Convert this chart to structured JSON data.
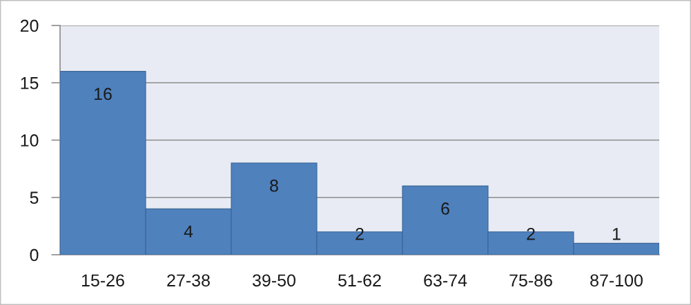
{
  "chart_data": {
    "type": "bar",
    "categories": [
      "15-26",
      "27-38",
      "39-50",
      "51-62",
      "63-74",
      "75-86",
      "87-100"
    ],
    "values": [
      16,
      4,
      8,
      2,
      6,
      2,
      1
    ],
    "color": "#4f81bd",
    "ylim": [
      0,
      20
    ],
    "yticks": [
      0,
      5,
      10,
      15,
      20
    ],
    "grid": "y",
    "data_labels": true
  }
}
